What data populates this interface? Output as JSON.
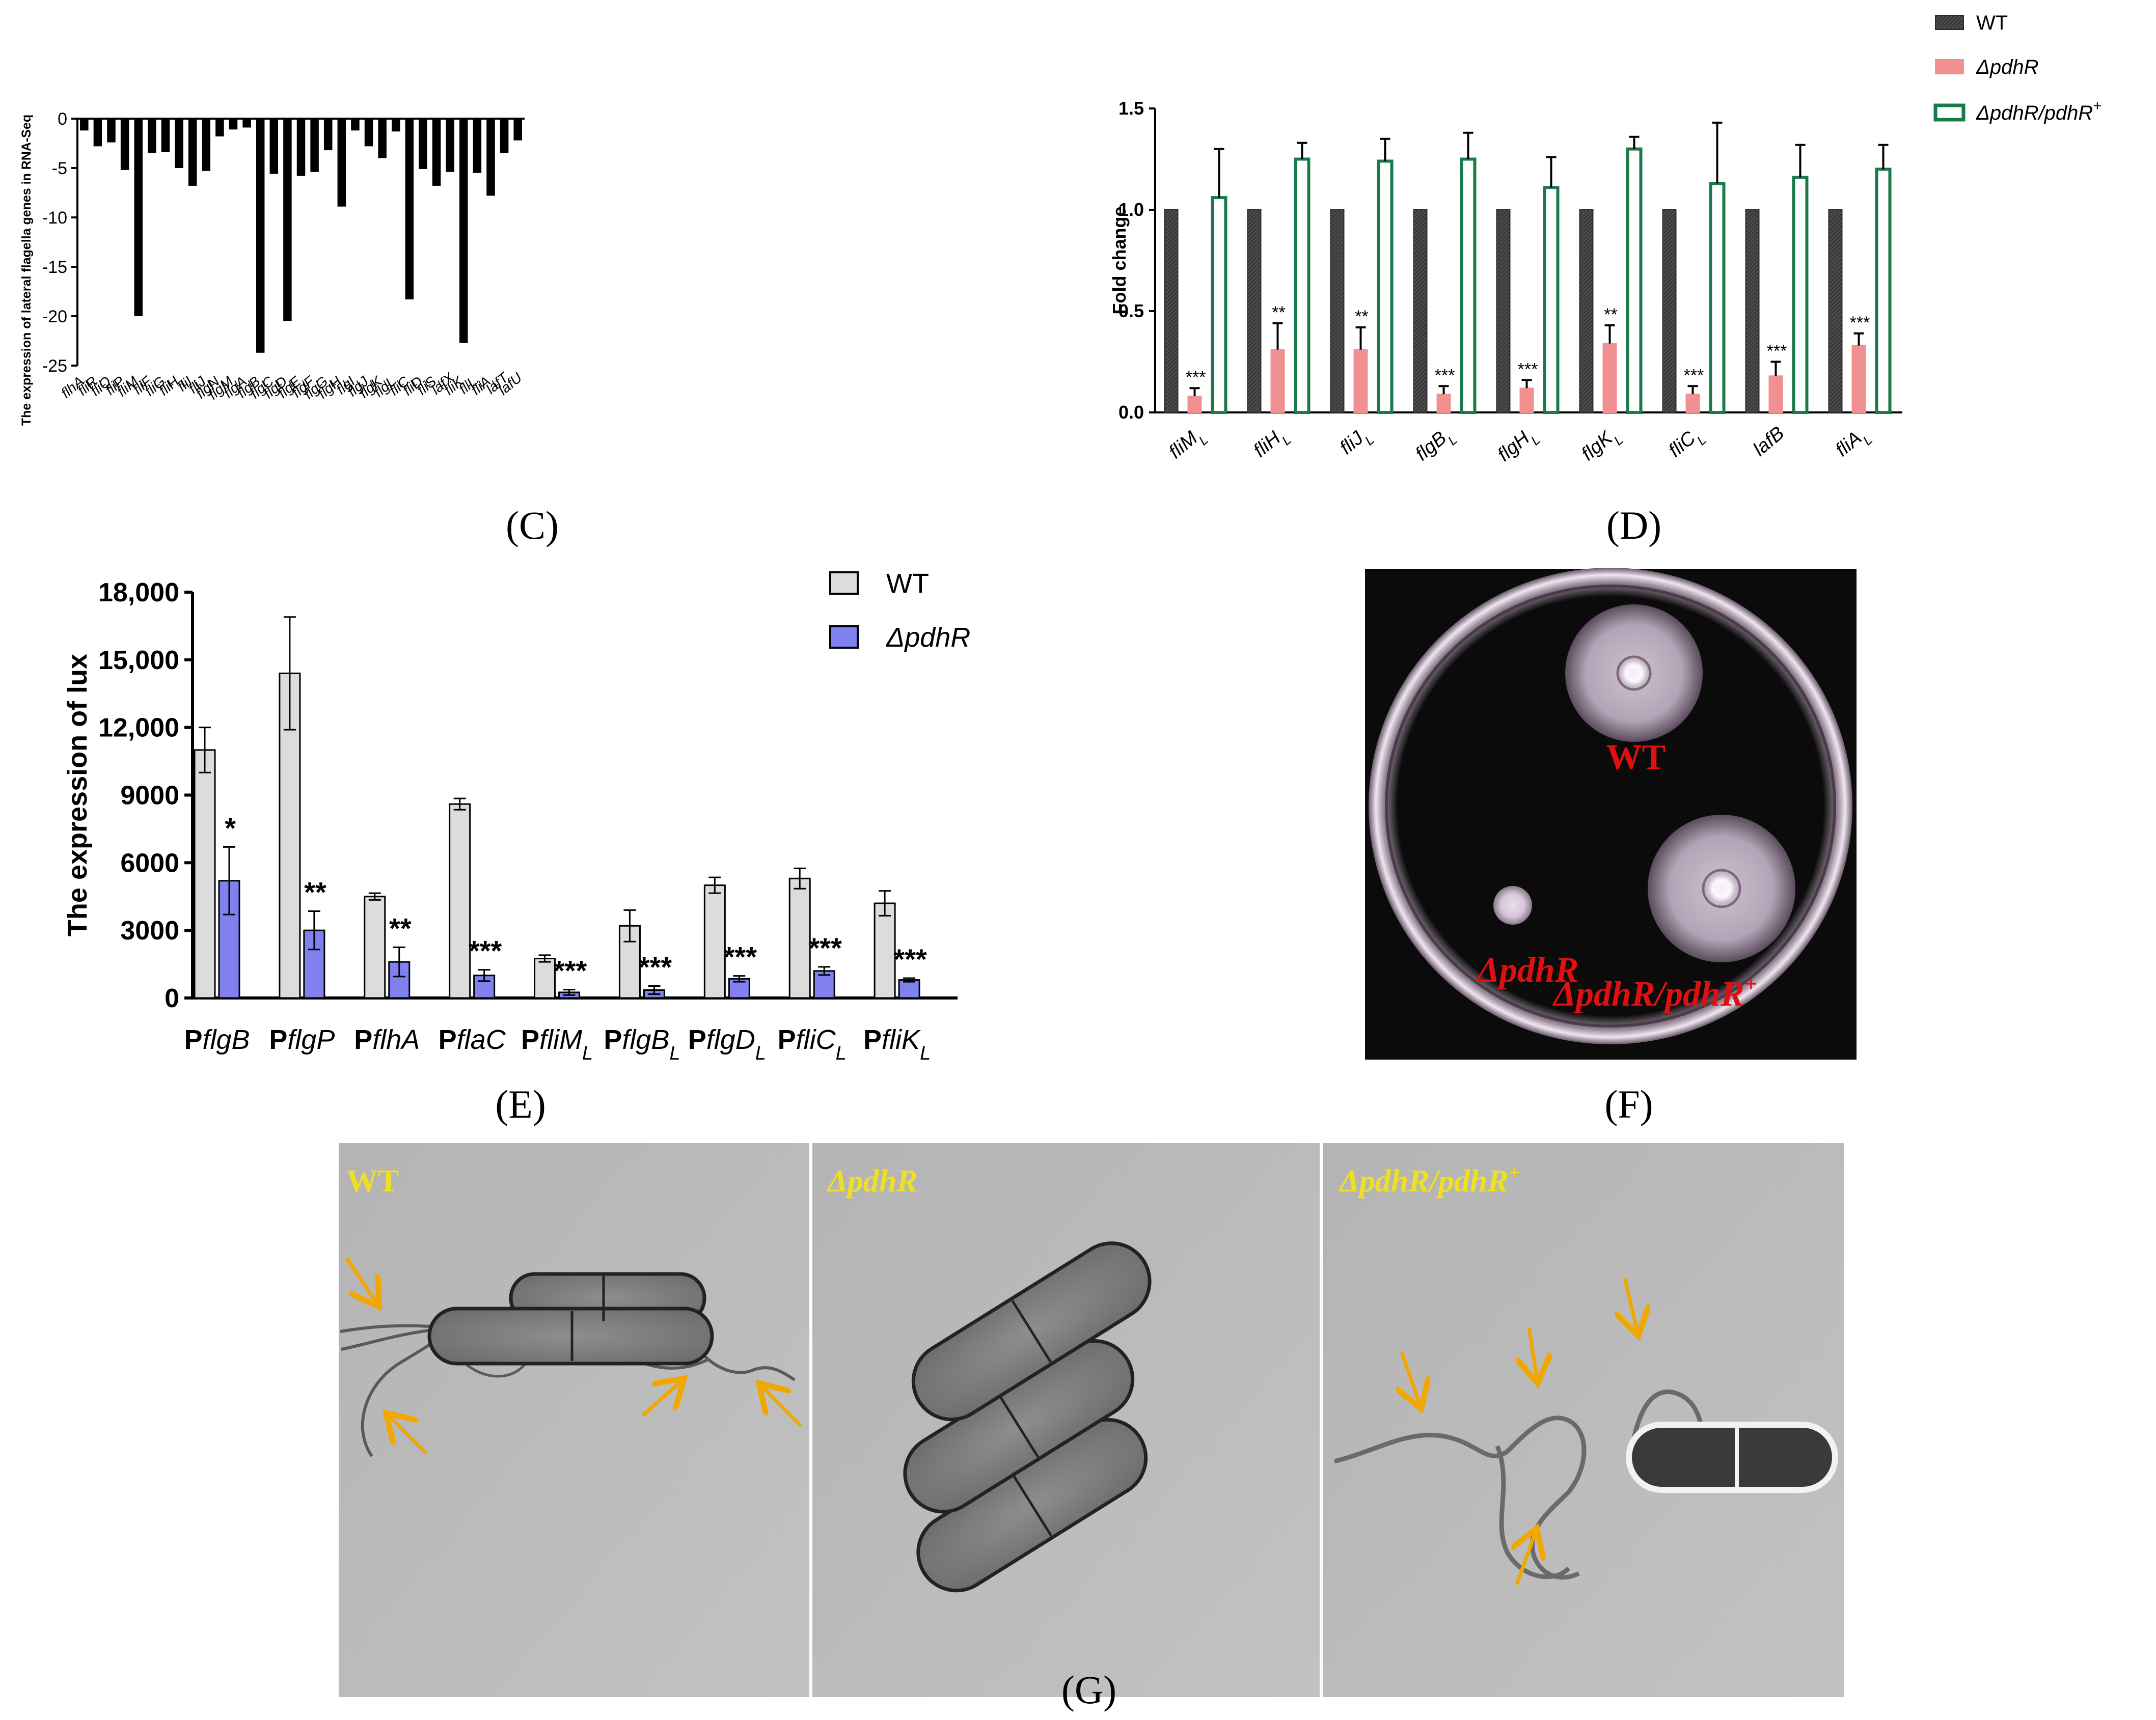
{
  "panels": {
    "C": {
      "label": "(C)"
    },
    "D": {
      "label": "(D)"
    },
    "E": {
      "label": "(E)"
    },
    "F": {
      "label": "(F)",
      "labels": {
        "wt": "WT",
        "mutant": "ΔpdhR",
        "complement": "ΔpdhR/pdhR",
        "complement_sup": "+"
      }
    },
    "G": {
      "label": "(G)",
      "labels": {
        "wt": "WT",
        "mutant": "ΔpdhR",
        "complement": "ΔpdhR/pdhR",
        "complement_sup": "+"
      }
    }
  },
  "colors": {
    "bar_black": "#000000",
    "wt_dark": "#3a3a3a",
    "mutant_pink": "#f09090",
    "complement_green": "#1a7a4a",
    "wt_gray": "#dcdcdc",
    "mutant_blue": "#8080f0",
    "plate_bg": "#0b0b0b",
    "red_label": "#e01010",
    "yellow_label": "#f0e020",
    "arrow_orange": "#f0a800"
  },
  "chart_data": [
    {
      "panel": "C",
      "type": "bar",
      "ylabel": "The expression of lateral flagella genes in RNA-Seq",
      "ylim": [
        -25,
        0
      ],
      "yticks": [
        0,
        -5,
        -10,
        -15,
        -20,
        -25
      ],
      "categories": [
        {
          "base": "flhA",
          "sub": "L"
        },
        {
          "base": "fliR",
          "sub": "L"
        },
        {
          "base": "fliQ",
          "sub": "L"
        },
        {
          "base": "fliP",
          "sub": "L"
        },
        {
          "base": "fliM",
          "sub": "L"
        },
        {
          "base": "fliF",
          "sub": "L"
        },
        {
          "base": "fliG",
          "sub": "L"
        },
        {
          "base": "fliH",
          "sub": "L"
        },
        {
          "base": "fliI",
          "sub": "L"
        },
        {
          "base": "fliJ",
          "sub": "L"
        },
        {
          "base": "flgN",
          "sub": "L"
        },
        {
          "base": "flgM",
          "sub": "L"
        },
        {
          "base": "flgA",
          "sub": "L"
        },
        {
          "base": "flgB",
          "sub": "L"
        },
        {
          "base": "flgC",
          "sub": "L"
        },
        {
          "base": "flgD",
          "sub": "L"
        },
        {
          "base": "flgE",
          "sub": "L"
        },
        {
          "base": "flgF",
          "sub": "L"
        },
        {
          "base": "flgG",
          "sub": "L"
        },
        {
          "base": "flgH",
          "sub": "L"
        },
        {
          "base": "flgI",
          "sub": "L"
        },
        {
          "base": "flgJ",
          "sub": "L"
        },
        {
          "base": "flgK",
          "sub": "L"
        },
        {
          "base": "flgL",
          "sub": "L"
        },
        {
          "base": "fliC",
          "sub": "L"
        },
        {
          "base": "fliD",
          "sub": "L"
        },
        {
          "base": "fliS",
          "sub": "L"
        },
        {
          "base": "lafX",
          "sub": ""
        },
        {
          "base": "fliK",
          "sub": "L"
        },
        {
          "base": "fliL",
          "sub": "L"
        },
        {
          "base": "fliA",
          "sub": "L"
        },
        {
          "base": "lafT",
          "sub": ""
        },
        {
          "base": "lafU",
          "sub": ""
        }
      ],
      "values": [
        -1.2,
        -2.8,
        -2.4,
        -5.2,
        -20.0,
        -3.5,
        -3.4,
        -5.0,
        -6.8,
        -5.3,
        -1.8,
        -1.1,
        -0.9,
        -23.7,
        -5.6,
        -20.5,
        -5.8,
        -5.4,
        -3.2,
        -8.9,
        -1.2,
        -2.8,
        -4.0,
        -1.3,
        -18.3,
        -5.1,
        -6.8,
        -5.4,
        -22.7,
        -5.5,
        -7.8,
        -3.5,
        -2.2
      ]
    },
    {
      "panel": "D",
      "type": "bar",
      "ylabel": "Fold change",
      "ylim": [
        0,
        1.5
      ],
      "yticks": [
        "0.0",
        "0.5",
        "1.0",
        "1.5"
      ],
      "categories": [
        {
          "base": "fliM",
          "sub": "L"
        },
        {
          "base": "fliH",
          "sub": "L"
        },
        {
          "base": "fliJ",
          "sub": "L"
        },
        {
          "base": "flgB",
          "sub": "L"
        },
        {
          "base": "flgH",
          "sub": "L"
        },
        {
          "base": "flgK",
          "sub": "L"
        },
        {
          "base": "fliC",
          "sub": "L"
        },
        {
          "base": "lafB",
          "sub": ""
        },
        {
          "base": "fliA",
          "sub": "L"
        }
      ],
      "legend": [
        {
          "name": "WT",
          "italic": false,
          "sup": ""
        },
        {
          "name": "ΔpdhR",
          "italic": true,
          "sup": ""
        },
        {
          "name": "ΔpdhR/pdhR",
          "italic": true,
          "sup": "+"
        }
      ],
      "series": [
        {
          "name": "WT",
          "values": [
            1,
            1,
            1,
            1,
            1,
            1,
            1,
            1,
            1
          ],
          "errors": [
            0,
            0,
            0,
            0,
            0,
            0,
            0,
            0,
            0
          ]
        },
        {
          "name": "ΔpdhR",
          "values": [
            0.08,
            0.31,
            0.31,
            0.09,
            0.12,
            0.34,
            0.09,
            0.18,
            0.33
          ],
          "errors": [
            0.04,
            0.13,
            0.11,
            0.04,
            0.04,
            0.09,
            0.04,
            0.07,
            0.06
          ]
        },
        {
          "name": "ΔpdhR/pdhR+",
          "values": [
            1.06,
            1.25,
            1.24,
            1.25,
            1.11,
            1.3,
            1.13,
            1.16,
            1.2
          ],
          "errors": [
            0.24,
            0.08,
            0.11,
            0.13,
            0.15,
            0.06,
            0.3,
            0.16,
            0.12
          ]
        }
      ],
      "significance": [
        "***",
        "**",
        "**",
        "***",
        "***",
        "**",
        "***",
        "***",
        "***"
      ]
    },
    {
      "panel": "E",
      "type": "bar",
      "ylabel": "The expression of lux",
      "ylim": [
        0,
        18000
      ],
      "yticks": [
        "0",
        "3000",
        "6000",
        "9000",
        "12,000",
        "15,000",
        "18,000"
      ],
      "categories": [
        {
          "prefix": "P",
          "base": "flgB",
          "sub": ""
        },
        {
          "prefix": "P",
          "base": "flgP",
          "sub": ""
        },
        {
          "prefix": "P",
          "base": "flhA",
          "sub": ""
        },
        {
          "prefix": "P",
          "base": "flaC",
          "sub": ""
        },
        {
          "prefix": "P",
          "base": "fliM",
          "sub": "L"
        },
        {
          "prefix": "P",
          "base": "flgB",
          "sub": "L"
        },
        {
          "prefix": "P",
          "base": "flgD",
          "sub": "L"
        },
        {
          "prefix": "P",
          "base": "fliC",
          "sub": "L"
        },
        {
          "prefix": "P",
          "base": "fliK",
          "sub": "L"
        }
      ],
      "legend": [
        {
          "name": "WT",
          "italic": false
        },
        {
          "name": "ΔpdhR",
          "italic": true
        }
      ],
      "series": [
        {
          "name": "WT",
          "values": [
            11000,
            14400,
            4500,
            8600,
            1750,
            3200,
            5000,
            5300,
            4200
          ],
          "errors": [
            1000,
            2500,
            150,
            250,
            150,
            700,
            350,
            450,
            550
          ]
        },
        {
          "name": "ΔpdhR",
          "values": [
            5200,
            3000,
            1600,
            1000,
            250,
            350,
            850,
            1200,
            800
          ],
          "errors": [
            1500,
            850,
            650,
            250,
            120,
            180,
            130,
            180,
            80
          ]
        }
      ],
      "significance": [
        "*",
        "**",
        "**",
        "***",
        "***",
        "***",
        "***",
        "***",
        "***"
      ]
    }
  ]
}
